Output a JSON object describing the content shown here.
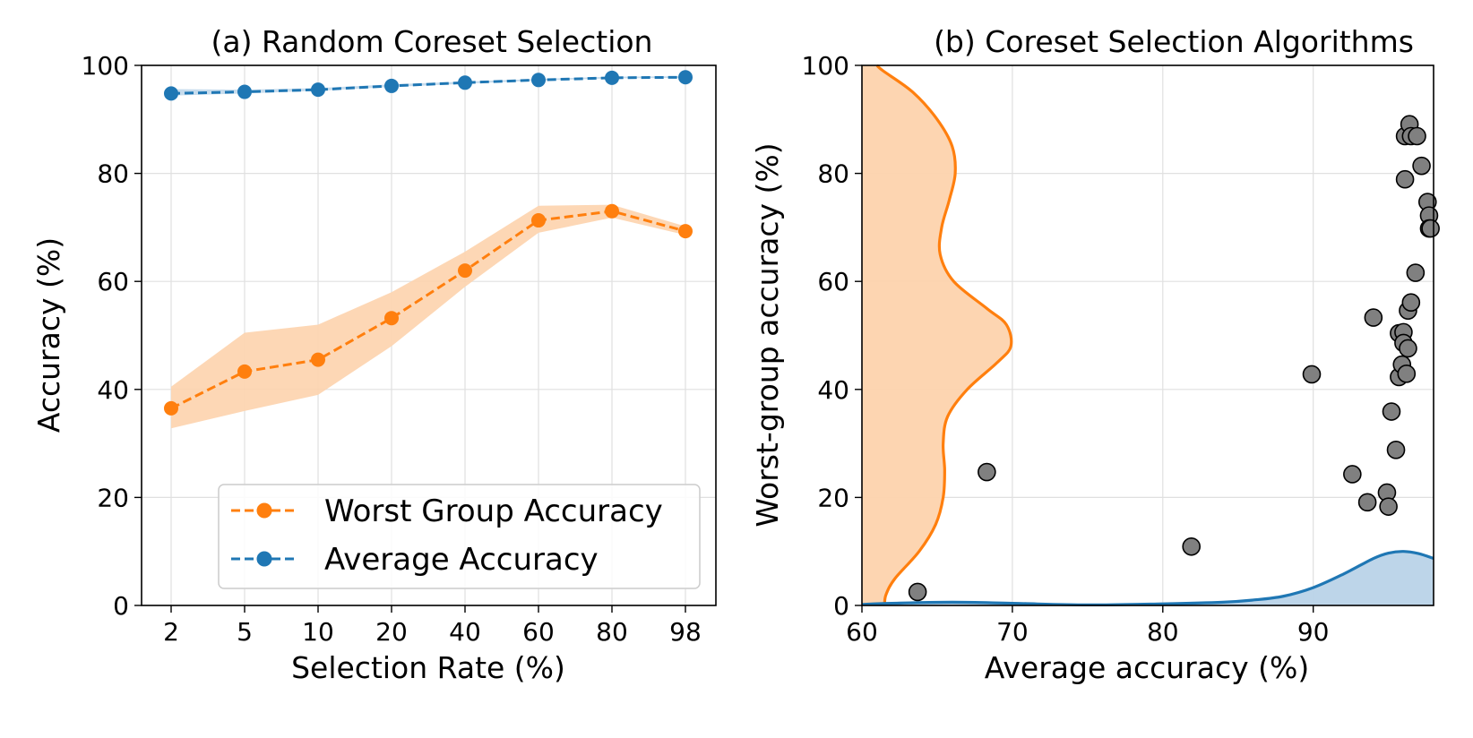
{
  "colors": {
    "worst": "#ff7f0e",
    "worst_fill": "#fdd3ad",
    "average": "#1f77b4",
    "average_fill": "#b9d3e8",
    "point_fill": "#808080",
    "grid": "#e0e0e0"
  },
  "chart_data": [
    {
      "type": "line",
      "title": "(a) Random Coreset Selection",
      "xlabel": "Selection Rate (%)",
      "ylabel": "Accuracy (%)",
      "categories": [
        "2",
        "5",
        "10",
        "20",
        "40",
        "60",
        "80",
        "98"
      ],
      "ylim": [
        0,
        100
      ],
      "yticks": [
        "0",
        "20",
        "40",
        "60",
        "80",
        "100"
      ],
      "grid": true,
      "legend_position": "bottom-right",
      "series": [
        {
          "name": "Worst Group Accuracy",
          "color": "#ff7f0e",
          "style": "dashed",
          "values": [
            36.5,
            43.3,
            45.5,
            53.2,
            62.0,
            71.3,
            73.0,
            69.3
          ],
          "band_low": [
            32.8,
            36.0,
            39.0,
            48.0,
            59.0,
            69.0,
            71.8,
            68.6
          ],
          "band_high": [
            40.5,
            50.5,
            52.0,
            58.0,
            65.5,
            74.0,
            74.2,
            70.2
          ]
        },
        {
          "name": "Average Accuracy",
          "color": "#1f77b4",
          "style": "dashed",
          "values": [
            94.8,
            95.1,
            95.5,
            96.2,
            96.8,
            97.3,
            97.7,
            97.8
          ],
          "band_low": [
            94.4,
            94.8,
            95.3,
            96.0,
            96.6,
            97.2,
            97.6,
            97.7
          ],
          "band_high": [
            95.6,
            95.5,
            95.8,
            96.5,
            97.0,
            97.5,
            97.9,
            98.0
          ]
        }
      ]
    },
    {
      "type": "scatter",
      "title": "(b) Coreset Selection Algorithms",
      "xlabel": "Average accuracy (%)",
      "ylabel": "Worst-group accuracy (%)",
      "xlim": [
        60,
        98
      ],
      "ylim": [
        0,
        100
      ],
      "xticks": [
        "60",
        "70",
        "80",
        "90"
      ],
      "yticks": [
        "0",
        "20",
        "40",
        "60",
        "80",
        "100"
      ],
      "grid": true,
      "points": [
        {
          "x": 63.7,
          "y": 2.5
        },
        {
          "x": 68.3,
          "y": 24.7
        },
        {
          "x": 81.9,
          "y": 10.9
        },
        {
          "x": 89.9,
          "y": 42.8
        },
        {
          "x": 92.6,
          "y": 24.3
        },
        {
          "x": 93.6,
          "y": 19.1
        },
        {
          "x": 94.0,
          "y": 53.3
        },
        {
          "x": 94.9,
          "y": 20.9
        },
        {
          "x": 95.0,
          "y": 18.3
        },
        {
          "x": 95.2,
          "y": 35.9
        },
        {
          "x": 95.5,
          "y": 28.8
        },
        {
          "x": 95.7,
          "y": 50.4
        },
        {
          "x": 95.7,
          "y": 42.3
        },
        {
          "x": 95.9,
          "y": 44.6
        },
        {
          "x": 96.0,
          "y": 50.6
        },
        {
          "x": 96.0,
          "y": 48.6
        },
        {
          "x": 96.1,
          "y": 86.9
        },
        {
          "x": 96.1,
          "y": 78.9
        },
        {
          "x": 96.2,
          "y": 42.9
        },
        {
          "x": 96.3,
          "y": 47.6
        },
        {
          "x": 96.3,
          "y": 54.6
        },
        {
          "x": 96.4,
          "y": 89.1
        },
        {
          "x": 96.5,
          "y": 56.1
        },
        {
          "x": 96.5,
          "y": 86.9
        },
        {
          "x": 96.8,
          "y": 61.6
        },
        {
          "x": 96.9,
          "y": 86.9
        },
        {
          "x": 97.2,
          "y": 81.4
        },
        {
          "x": 97.6,
          "y": 74.7
        },
        {
          "x": 97.7,
          "y": 72.2
        },
        {
          "x": 97.7,
          "y": 69.8
        },
        {
          "x": 97.8,
          "y": 69.8
        }
      ],
      "density_y": {
        "color": "#ff7f0e",
        "y": [
          0,
          2,
          5,
          10,
          15,
          20,
          25,
          30,
          35,
          40,
          45,
          48,
          52,
          55,
          60,
          65,
          70,
          75,
          80,
          85,
          90,
          95,
          99,
          100
        ],
        "x": [
          61.5,
          61.6,
          62.2,
          63.8,
          64.9,
          65.4,
          65.5,
          65.4,
          65.7,
          67.0,
          69.0,
          69.9,
          69.6,
          68.3,
          66.1,
          65.2,
          65.3,
          65.8,
          66.2,
          66.0,
          65.0,
          63.4,
          61.4,
          61.0
        ]
      },
      "density_x": {
        "color": "#1f77b4",
        "x": [
          60,
          62,
          66,
          70,
          75,
          80,
          84,
          86,
          88,
          90,
          92,
          94,
          95,
          96,
          97,
          98
        ],
        "y": [
          0.2,
          0.4,
          0.6,
          0.4,
          0.1,
          0.3,
          0.6,
          1.0,
          1.7,
          3.3,
          5.8,
          8.7,
          9.7,
          10.0,
          9.6,
          8.7
        ]
      }
    }
  ]
}
